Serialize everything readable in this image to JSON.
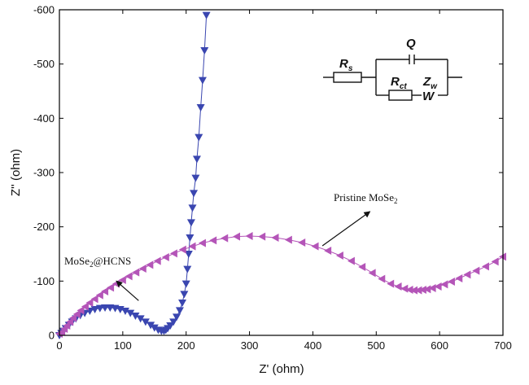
{
  "chart_data": {
    "type": "scatter",
    "title": "",
    "xlabel": "Z' (ohm)",
    "ylabel": "Z'' (ohm)",
    "xlim": [
      0,
      700
    ],
    "ylim": [
      0,
      -600
    ],
    "x_ticks": [
      "0",
      "100",
      "200",
      "300",
      "400",
      "500",
      "600",
      "700"
    ],
    "y_ticks": [
      "0",
      "-100",
      "-200",
      "-300",
      "-400",
      "-500",
      "-600"
    ],
    "x_tick_values": [
      0,
      100,
      200,
      300,
      400,
      500,
      600,
      700
    ],
    "y_tick_values": [
      0,
      -100,
      -200,
      -300,
      -400,
      -500,
      -600
    ],
    "series": [
      {
        "name": "MoSe2@HCNS",
        "color": "#3a46b0",
        "marker": "triangle-down",
        "x": [
          0,
          3,
          6,
          10,
          15,
          20,
          26,
          33,
          40,
          48,
          56,
          64,
          72,
          80,
          88,
          96,
          104,
          112,
          120,
          128,
          136,
          144,
          150,
          156,
          161,
          165,
          168,
          171,
          175,
          180,
          185,
          190,
          194,
          197,
          200,
          202,
          204,
          206,
          208,
          210,
          212,
          215,
          217,
          220,
          223,
          226,
          229,
          232
        ],
        "y": [
          0,
          -4,
          -8,
          -13,
          -19,
          -25,
          -31,
          -37,
          -41,
          -45,
          -48,
          -50,
          -51,
          -51,
          -50,
          -48,
          -45,
          -41,
          -36,
          -31,
          -25,
          -19,
          -14,
          -10,
          -8,
          -8,
          -10,
          -13,
          -18,
          -25,
          -34,
          -46,
          -60,
          -76,
          -95,
          -122,
          -150,
          -180,
          -208,
          -235,
          -262,
          -290,
          -325,
          -365,
          -420,
          -470,
          -525,
          -590
        ]
      },
      {
        "name": "Pristine MoSe2",
        "color": "#b455b8",
        "marker": "triangle-left",
        "x": [
          0,
          4,
          8,
          12,
          17,
          22,
          28,
          34,
          41,
          48,
          56,
          64,
          72,
          81,
          90,
          100,
          110,
          121,
          132,
          143,
          155,
          168,
          181,
          195,
          210,
          226,
          243,
          261,
          280,
          300,
          320,
          341,
          362,
          383,
          404,
          424,
          443,
          461,
          478,
          494,
          509,
          523,
          535,
          545,
          553,
          560,
          567,
          574,
          581,
          589,
          598,
          608,
          619,
          631,
          644,
          658,
          673,
          688,
          700
        ],
        "y": [
          -3,
          -6,
          -12,
          -18,
          -25,
          -32,
          -39,
          -46,
          -53,
          -60,
          -67,
          -74,
          -81,
          -88,
          -95,
          -102,
          -109,
          -116,
          -123,
          -130,
          -137,
          -144,
          -151,
          -158,
          -164,
          -170,
          -175,
          -179,
          -182,
          -183,
          -182,
          -180,
          -176,
          -171,
          -164,
          -156,
          -147,
          -137,
          -126,
          -115,
          -104,
          -95,
          -90,
          -86,
          -84,
          -83,
          -83,
          -84,
          -85,
          -87,
          -90,
          -94,
          -99,
          -105,
          -112,
          -119,
          -127,
          -136,
          -145
        ]
      }
    ],
    "annotations": [
      {
        "text_base": "Pristine MoSe",
        "text_sub": "2",
        "arrow_from": [
          415,
          -165
        ],
        "arrow_to": [
          490,
          -228
        ]
      },
      {
        "text_base": "MoSe",
        "text_sub": "2",
        "text_rest": "@HCNS",
        "arrow_from": [
          125,
          -64
        ],
        "arrow_to": [
          90,
          -100
        ]
      }
    ],
    "circuit_labels": {
      "rs_base": "R",
      "rs_sub": "s",
      "q": "Q",
      "rct_base": "R",
      "rct_sub": "ct",
      "zw_base": "Z",
      "zw_sub": "w",
      "w": "W"
    }
  }
}
